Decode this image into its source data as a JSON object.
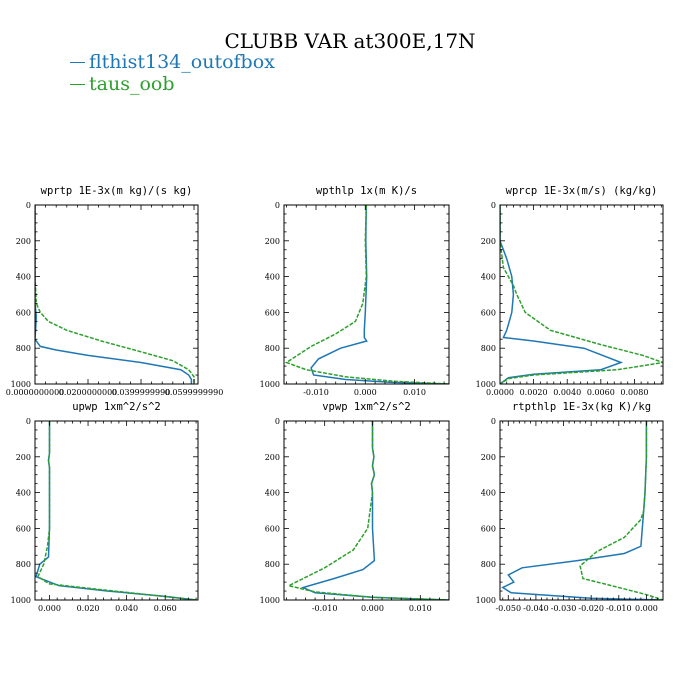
{
  "title": "CLUBB VAR at300E,17N",
  "legend": [
    {
      "label": "flthist134_outofbox",
      "color": "#1f77b4"
    },
    {
      "label": "taus_oob",
      "color": "#2ca02c"
    }
  ],
  "chart_data": [
    {
      "type": "line",
      "title": "wprtp  1E-3x(m kg)/(s kg)",
      "xlim": [
        0.0,
        0.0615
      ],
      "ylim": [
        1000,
        0
      ],
      "xticks": [
        0.0,
        0.02,
        0.04,
        0.06
      ],
      "xtick_labels": [
        "0.0000000000",
        "0.0200000000",
        "0.0399999990",
        "0.0599999990"
      ],
      "yticks": [
        0,
        200,
        400,
        600,
        800,
        1000
      ],
      "ytick_labels": [
        "0",
        "200",
        "400",
        "600",
        "800",
        "1000"
      ],
      "series": [
        {
          "name": "flthist134_outofbox",
          "x": [
            0.0,
            0.0,
            0.0,
            0.0,
            0.0005,
            0.0003,
            0.0,
            0.002,
            0.008,
            0.02,
            0.04,
            0.055,
            0.058,
            0.059,
            0.059
          ],
          "y": [
            0,
            200,
            400,
            550,
            620,
            680,
            750,
            790,
            810,
            840,
            880,
            920,
            950,
            975,
            1000
          ]
        },
        {
          "name": "taus_oob",
          "x": [
            0.0,
            0.0,
            0.0,
            0.0005,
            0.002,
            0.005,
            0.012,
            0.025,
            0.04,
            0.052,
            0.058,
            0.06,
            0.06
          ],
          "y": [
            0,
            200,
            400,
            550,
            600,
            650,
            700,
            760,
            820,
            870,
            920,
            960,
            1000
          ]
        }
      ]
    },
    {
      "type": "line",
      "title": "wpthlp  1x(m K)/s",
      "xlim": [
        -0.0165,
        0.017
      ],
      "ylim": [
        1000,
        0
      ],
      "xticks": [
        -0.01,
        0.0,
        0.01
      ],
      "xtick_labels": [
        "-0.010",
        "0.000",
        "0.010"
      ],
      "yticks": [
        0,
        200,
        400,
        600,
        800,
        1000
      ],
      "ytick_labels": [
        "0",
        "200",
        "400",
        "600",
        "800",
        "1000"
      ],
      "series": [
        {
          "name": "flthist134_outofbox",
          "x": [
            0.0002,
            0.0001,
            0.0003,
            0.0,
            -0.0002,
            -0.0002,
            0.0003,
            -0.005,
            -0.0095,
            -0.011,
            -0.0105,
            -0.004,
            0.005,
            0.017
          ],
          "y": [
            0,
            200,
            400,
            600,
            700,
            740,
            760,
            800,
            860,
            910,
            950,
            975,
            990,
            1000
          ]
        },
        {
          "name": "taus_oob",
          "x": [
            0.0002,
            0.0,
            0.0002,
            -0.0005,
            -0.002,
            -0.006,
            -0.011,
            -0.016,
            -0.012,
            -0.004,
            0.006,
            0.017
          ],
          "y": [
            0,
            200,
            400,
            550,
            650,
            720,
            790,
            880,
            920,
            960,
            985,
            1000
          ]
        }
      ]
    },
    {
      "type": "line",
      "title": "wprcp  1E-3x(m/s) (kg/kg)",
      "xlim": [
        0.0,
        0.0097
      ],
      "ylim": [
        1000,
        0
      ],
      "xticks": [
        0.0,
        0.002,
        0.004,
        0.006,
        0.008
      ],
      "xtick_labels": [
        "0.0000",
        "0.0020",
        "0.0040",
        "0.0060",
        "0.0080"
      ],
      "yticks": [
        0,
        200,
        400,
        600,
        800,
        1000
      ],
      "ytick_labels": [
        "0",
        "200",
        "400",
        "600",
        "800",
        "1000"
      ],
      "series": [
        {
          "name": "flthist134_outofbox",
          "x": [
            0.0,
            0.0,
            0.0004,
            0.0007,
            0.0008,
            0.0007,
            0.0004,
            0.0002,
            0.002,
            0.005,
            0.0072,
            0.006,
            0.002,
            0.0005,
            0.0
          ],
          "y": [
            0,
            200,
            300,
            400,
            500,
            600,
            700,
            740,
            760,
            800,
            880,
            920,
            945,
            965,
            1000
          ]
        },
        {
          "name": "taus_oob",
          "x": [
            0.0,
            0.0,
            0.0002,
            0.0008,
            0.001,
            0.0015,
            0.003,
            0.006,
            0.0085,
            0.0097,
            0.007,
            0.002,
            0.0005,
            0.0
          ],
          "y": [
            0,
            200,
            350,
            450,
            500,
            600,
            700,
            780,
            840,
            880,
            920,
            950,
            970,
            1000
          ]
        }
      ]
    },
    {
      "type": "line",
      "title": "upwp  1xm^2/s^2",
      "xlim": [
        -0.0075,
        0.077
      ],
      "ylim": [
        1000,
        0
      ],
      "xticks": [
        0.0,
        0.02,
        0.04,
        0.06
      ],
      "xtick_labels": [
        "0.000",
        "0.020",
        "0.040",
        "0.060"
      ],
      "yticks": [
        0,
        200,
        400,
        600,
        800,
        1000
      ],
      "ytick_labels": [
        "0",
        "200",
        "400",
        "600",
        "800",
        "1000"
      ],
      "series": [
        {
          "name": "flthist134_outofbox",
          "x": [
            0.0,
            0.0,
            -0.0005,
            0.0,
            0.0,
            0.0,
            -0.0005,
            -0.005,
            -0.007,
            0.005,
            0.03,
            0.06,
            0.076
          ],
          "y": [
            0,
            180,
            220,
            260,
            400,
            600,
            760,
            800,
            870,
            920,
            950,
            980,
            1000
          ]
        },
        {
          "name": "taus_oob",
          "x": [
            0.0,
            0.0,
            -0.0005,
            0.0,
            0.0,
            -0.001,
            -0.003,
            -0.006,
            0.0,
            0.025,
            0.055,
            0.076
          ],
          "y": [
            0,
            180,
            220,
            260,
            600,
            700,
            800,
            870,
            910,
            940,
            975,
            1000
          ]
        }
      ]
    },
    {
      "type": "line",
      "title": "vpwp  1xm^2/s^2",
      "xlim": [
        -0.0185,
        0.016
      ],
      "ylim": [
        1000,
        0
      ],
      "xticks": [
        -0.01,
        0.0,
        0.01
      ],
      "xtick_labels": [
        "-0.010",
        "0.000",
        "0.010"
      ],
      "yticks": [
        0,
        200,
        400,
        600,
        800,
        1000
      ],
      "ytick_labels": [
        "0",
        "200",
        "400",
        "600",
        "800",
        "1000"
      ],
      "series": [
        {
          "name": "flthist134_outofbox",
          "x": [
            0.0,
            0.0,
            0.0003,
            0.0,
            0.0004,
            -0.0002,
            0.0,
            0.0,
            0.0004,
            -0.002,
            -0.008,
            -0.0145,
            -0.012,
            0.0,
            0.016
          ],
          "y": [
            0,
            150,
            200,
            250,
            300,
            350,
            400,
            600,
            780,
            830,
            880,
            930,
            960,
            985,
            1000
          ]
        },
        {
          "name": "taus_oob",
          "x": [
            0.0,
            0.0,
            0.0003,
            0.0,
            0.0004,
            -0.0002,
            0.0,
            -0.001,
            -0.004,
            -0.01,
            -0.0175,
            -0.012,
            0.0,
            0.016
          ],
          "y": [
            0,
            150,
            200,
            250,
            300,
            350,
            400,
            600,
            720,
            820,
            920,
            955,
            985,
            1000
          ]
        }
      ]
    },
    {
      "type": "line",
      "title": "rtpthlp  1E-3x(kg K)/kg",
      "xlim": [
        -0.053,
        0.006
      ],
      "ylim": [
        1000,
        0
      ],
      "xticks": [
        -0.05,
        -0.04,
        -0.03,
        -0.02,
        -0.01,
        0.0
      ],
      "xtick_labels": [
        "-0.050",
        "-0.040",
        "-0.030",
        "-0.020",
        "-0.010",
        "0.000"
      ],
      "yticks": [
        0,
        200,
        400,
        600,
        800,
        1000
      ],
      "ytick_labels": [
        "0",
        "200",
        "400",
        "600",
        "800",
        "1000"
      ],
      "series": [
        {
          "name": "flthist134_outofbox",
          "x": [
            0.0,
            0.0,
            -0.0005,
            -0.001,
            -0.0015,
            -0.002,
            -0.008,
            -0.025,
            -0.045,
            -0.05,
            -0.048,
            -0.052,
            -0.049,
            -0.02,
            0.006
          ],
          "y": [
            0,
            200,
            400,
            500,
            600,
            700,
            740,
            780,
            820,
            860,
            900,
            930,
            960,
            990,
            1000
          ]
        },
        {
          "name": "taus_oob",
          "x": [
            0.0,
            0.0,
            -0.0005,
            -0.001,
            -0.002,
            -0.008,
            -0.018,
            -0.024,
            -0.023,
            -0.01,
            0.0,
            0.006
          ],
          "y": [
            0,
            200,
            400,
            500,
            550,
            650,
            730,
            810,
            880,
            930,
            970,
            1000
          ]
        }
      ]
    }
  ]
}
